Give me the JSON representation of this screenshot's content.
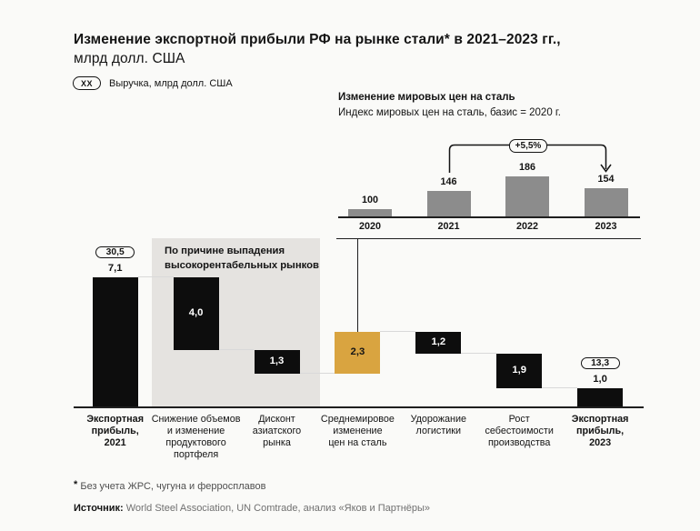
{
  "title": {
    "line1": "Изменение экспортной прибыли РФ на рынке стали* в 2021–2023 гг.,",
    "line2": "млрд долл. США"
  },
  "legend": {
    "badge": "XX",
    "label": "Выручка, млрд долл. США"
  },
  "inset": {
    "title": "Изменение мировых цен на сталь",
    "subtitle": "Индекс мировых цен на сталь, базис = 2020 г.",
    "annotation": "+5,5%"
  },
  "waterfall_note_lines": [
    "По причине выпадения",
    "высокорентабельных рынков"
  ],
  "footnotes": {
    "asterisk": "*",
    "note": "Без учета ЖРС, чугуна и ферросплавов",
    "source_label": "Источник:",
    "source_text": "World Steel Association, UN Comtrade, анализ «Яков и Партнёры»"
  },
  "colors": {
    "black": "#0d0d0d",
    "gold": "#D9A440",
    "gray_bar": "#8c8c8c",
    "gray_region": "#e5e3e0"
  },
  "chart_data": [
    {
      "type": "bar",
      "name": "steel-price-index",
      "title": "Изменение мировых цен на сталь",
      "subtitle": "Индекс мировых цен на сталь, базис = 2020 г.",
      "categories": [
        "2020",
        "2021",
        "2022",
        "2023"
      ],
      "values": [
        100,
        146,
        186,
        154
      ],
      "annotation": {
        "text": "+5,5%",
        "from": "2021",
        "to": "2023"
      },
      "ylim": [
        78,
        200
      ],
      "grid": false,
      "legend": "none"
    },
    {
      "type": "waterfall",
      "name": "export-profit-waterfall",
      "title": "Изменение экспортной прибыли РФ на рынке стали в 2021–2023 гг., млрд долл. США",
      "note": "По причине выпадения высокорентабельных рынков",
      "bars": [
        {
          "label": "Экспортная прибыль, 2021",
          "label_lines": [
            "Экспортная",
            "прибыль,",
            "2021"
          ],
          "value": 7.1,
          "display": "7,1",
          "kind": "total",
          "revenue_badge": "30,5",
          "emphasis": true
        },
        {
          "label": "Снижение объемов и изменение продуктового портфеля",
          "label_lines": [
            "Снижение объемов",
            "и изменение",
            "продуктового",
            "портфеля"
          ],
          "value": -4.0,
          "display": "4,0",
          "kind": "decrease"
        },
        {
          "label": "Дисконт азиатского рынка",
          "label_lines": [
            "Дисконт",
            "азиатского",
            "рынка"
          ],
          "value": -1.3,
          "display": "1,3",
          "kind": "decrease"
        },
        {
          "label": "Среднемировое изменение цен на сталь",
          "label_lines": [
            "Среднемировое",
            "изменение",
            "цен на сталь"
          ],
          "value": 2.3,
          "display": "2,3",
          "kind": "increase",
          "color": "gold"
        },
        {
          "label": "Удорожание логистики",
          "label_lines": [
            "Удорожание",
            "логистики"
          ],
          "value": -1.2,
          "display": "1,2",
          "kind": "decrease"
        },
        {
          "label": "Рост себестоимости производства",
          "label_lines": [
            "Рост",
            "себестоимости",
            "производства"
          ],
          "value": -1.9,
          "display": "1,9",
          "kind": "decrease"
        },
        {
          "label": "Экспортная прибыль, 2023",
          "label_lines": [
            "Экспортная",
            "прибыль,",
            "2023"
          ],
          "value": 1.0,
          "display": "1,0",
          "kind": "total",
          "revenue_badge": "13,3",
          "emphasis": true
        }
      ]
    }
  ]
}
